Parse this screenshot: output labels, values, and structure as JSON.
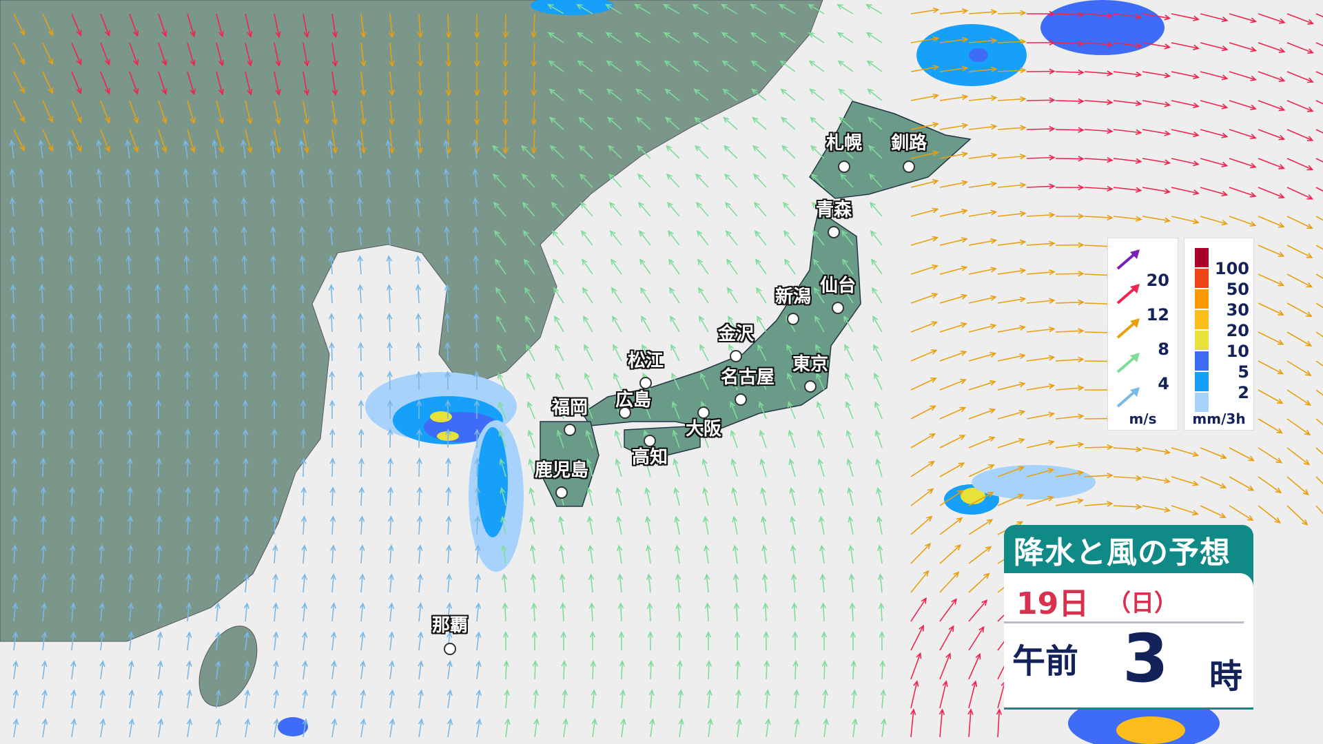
{
  "title": "降水と風の予想",
  "date": {
    "day": "19日",
    "weekday": "（日）"
  },
  "time": {
    "period": "午前",
    "hour": "3",
    "unit": "時"
  },
  "wind_legend": {
    "unit": "m/s",
    "levels": [
      {
        "value": "20",
        "color": "#7a1fb8"
      },
      {
        "value": "12",
        "color": "#f0244f"
      },
      {
        "value": "8",
        "color": "#e8a010"
      },
      {
        "value": "4",
        "color": "#7fdc9a"
      },
      {
        "value": "",
        "color": "#7ab8e6"
      }
    ]
  },
  "precip_legend": {
    "unit": "mm/3h",
    "levels": [
      {
        "value": "100",
        "color": "#a8002a"
      },
      {
        "value": "50",
        "color": "#ee4418"
      },
      {
        "value": "30",
        "color": "#ff9a00"
      },
      {
        "value": "20",
        "color": "#fcbd1c"
      },
      {
        "value": "10",
        "color": "#e6e23a"
      },
      {
        "value": "5",
        "color": "#3e6cf6"
      },
      {
        "value": "2",
        "color": "#16a0fa"
      },
      {
        "value": "",
        "color": "#a6d2fc"
      }
    ]
  },
  "cities": [
    {
      "name": "札幌"
    },
    {
      "name": "釧路"
    },
    {
      "name": "青森"
    },
    {
      "name": "仙台"
    },
    {
      "name": "新潟"
    },
    {
      "name": "金沢"
    },
    {
      "name": "東京"
    },
    {
      "name": "名古屋"
    },
    {
      "name": "大阪"
    },
    {
      "name": "松江"
    },
    {
      "name": "広島"
    },
    {
      "name": "高知"
    },
    {
      "name": "福岡"
    },
    {
      "name": "鹿児島"
    },
    {
      "name": "那覇"
    }
  ],
  "colors": {
    "sea": "#eeeeee",
    "land": "#7b978a",
    "japan": "#6a9a88",
    "title_bg": "#0f8a86"
  }
}
